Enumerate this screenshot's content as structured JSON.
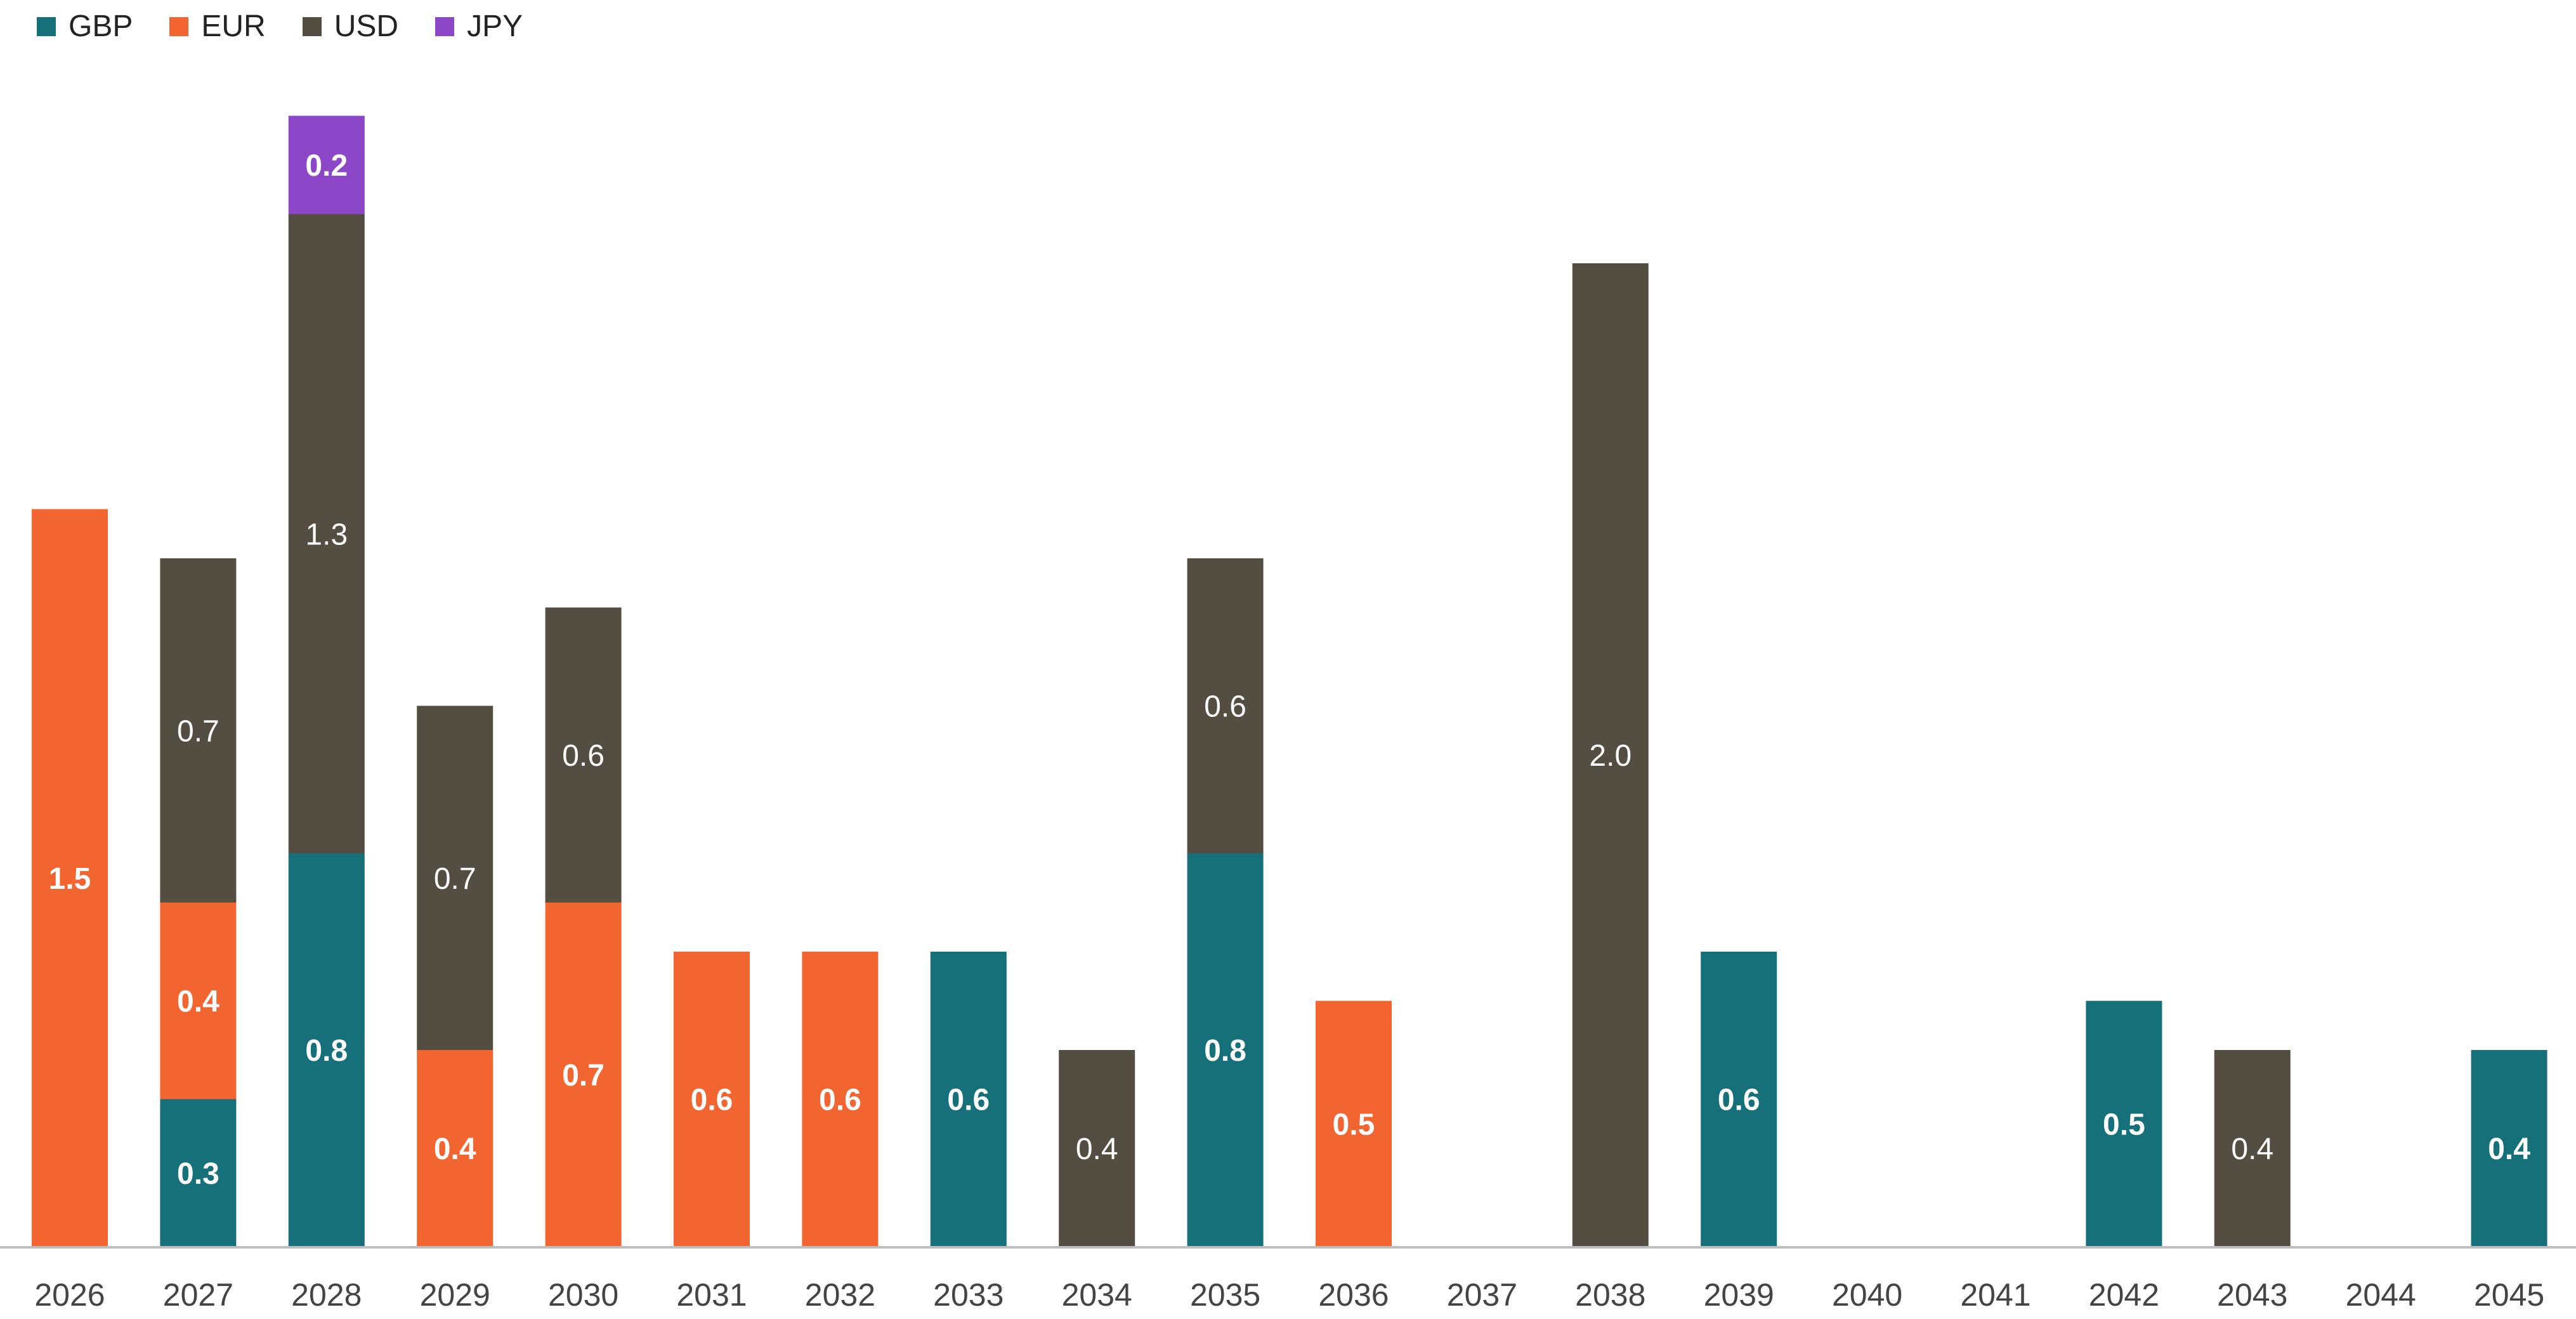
{
  "colors": {
    "GBP": "#157079",
    "EUR": "#f26531",
    "USD": "#534e41",
    "JPY": "#8c47c8",
    "axis": "#bfbfbf",
    "tick_text": "#444444"
  },
  "legend": [
    {
      "label": "GBP",
      "color_key": "GBP"
    },
    {
      "label": "EUR",
      "color_key": "EUR"
    },
    {
      "label": "USD",
      "color_key": "USD"
    },
    {
      "label": "JPY",
      "color_key": "JPY"
    }
  ],
  "chart_data": {
    "type": "bar",
    "stacked": true,
    "title": "",
    "xlabel": "",
    "ylabel": "",
    "ylim": [
      0,
      2.6
    ],
    "grid": false,
    "legend_position": "top-left",
    "categories": [
      "2026",
      "2027",
      "2028",
      "2029",
      "2030",
      "2031",
      "2032",
      "2033",
      "2034",
      "2035",
      "2036",
      "2037",
      "2038",
      "2039",
      "2040",
      "2041",
      "2042",
      "2043",
      "2044",
      "2045"
    ],
    "series": [
      {
        "name": "GBP",
        "values": [
          0,
          0.3,
          0.8,
          0,
          0,
          0,
          0,
          0.6,
          0,
          0.8,
          0,
          0,
          0,
          0.6,
          0,
          0,
          0.5,
          0,
          0,
          0.4
        ]
      },
      {
        "name": "EUR",
        "values": [
          1.5,
          0.4,
          0,
          0.4,
          0.7,
          0.6,
          0.6,
          0,
          0,
          0,
          0.5,
          0,
          0,
          0,
          0,
          0,
          0,
          0,
          0,
          0
        ]
      },
      {
        "name": "USD",
        "values": [
          0,
          0.7,
          1.3,
          0.7,
          0.6,
          0,
          0,
          0,
          0.4,
          0.6,
          0,
          0,
          2.0,
          0,
          0,
          0,
          0,
          0.4,
          0,
          0
        ]
      },
      {
        "name": "JPY",
        "values": [
          0,
          0,
          0.2,
          0,
          0,
          0,
          0,
          0,
          0,
          0,
          0,
          0,
          0,
          0,
          0,
          0,
          0,
          0,
          0,
          0
        ]
      }
    ],
    "data_labels": [
      {
        "category": "2026",
        "series": "EUR",
        "text": "1.5",
        "bold": true
      },
      {
        "category": "2027",
        "series": "GBP",
        "text": "0.3",
        "bold": true
      },
      {
        "category": "2027",
        "series": "EUR",
        "text": "0.4",
        "bold": true
      },
      {
        "category": "2027",
        "series": "USD",
        "text": "0.7",
        "bold": false
      },
      {
        "category": "2028",
        "series": "GBP",
        "text": "0.8",
        "bold": true
      },
      {
        "category": "2028",
        "series": "USD",
        "text": "1.3",
        "bold": false
      },
      {
        "category": "2028",
        "series": "JPY",
        "text": "0.2",
        "bold": true
      },
      {
        "category": "2029",
        "series": "EUR",
        "text": "0.4",
        "bold": true
      },
      {
        "category": "2029",
        "series": "USD",
        "text": "0.7",
        "bold": false
      },
      {
        "category": "2030",
        "series": "EUR",
        "text": "0.7",
        "bold": true
      },
      {
        "category": "2030",
        "series": "USD",
        "text": "0.6",
        "bold": false
      },
      {
        "category": "2031",
        "series": "EUR",
        "text": "0.6",
        "bold": true
      },
      {
        "category": "2032",
        "series": "EUR",
        "text": "0.6",
        "bold": true
      },
      {
        "category": "2033",
        "series": "GBP",
        "text": "0.6",
        "bold": true
      },
      {
        "category": "2034",
        "series": "USD",
        "text": "0.4",
        "bold": false
      },
      {
        "category": "2035",
        "series": "GBP",
        "text": "0.8",
        "bold": true
      },
      {
        "category": "2035",
        "series": "USD",
        "text": "0.6",
        "bold": false
      },
      {
        "category": "2036",
        "series": "EUR",
        "text": "0.5",
        "bold": true
      },
      {
        "category": "2038",
        "series": "USD",
        "text": "2.0",
        "bold": false
      },
      {
        "category": "2039",
        "series": "GBP",
        "text": "0.6",
        "bold": true
      },
      {
        "category": "2042",
        "series": "GBP",
        "text": "0.5",
        "bold": true
      },
      {
        "category": "2043",
        "series": "USD",
        "text": "0.4",
        "bold": false
      },
      {
        "category": "2045",
        "series": "GBP",
        "text": "0.4",
        "bold": true
      }
    ]
  }
}
